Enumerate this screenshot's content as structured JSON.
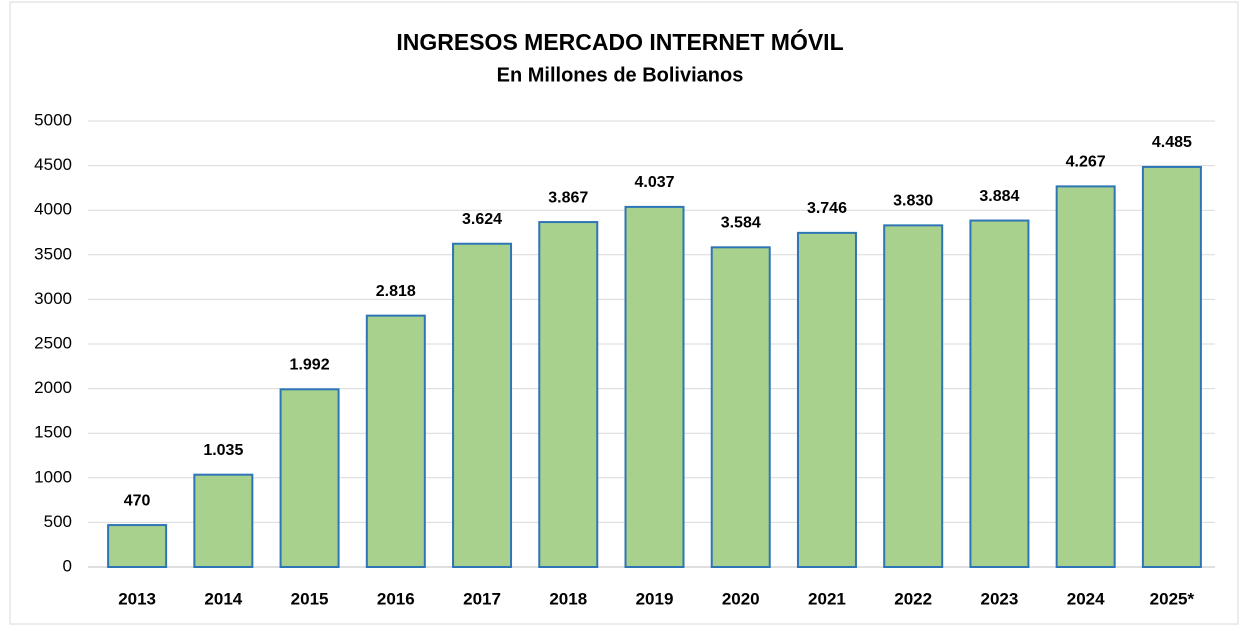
{
  "chart_data": {
    "type": "bar",
    "title": "INGRESOS MERCADO INTERNET MÓVIL",
    "subtitle": "En Millones de  Bolivianos",
    "categories": [
      "2013",
      "2014",
      "2015",
      "2016",
      "2017",
      "2018",
      "2019",
      "2020",
      "2021",
      "2022",
      "2023",
      "2024",
      "2025*"
    ],
    "values": [
      470,
      1035,
      1992,
      2818,
      3624,
      3867,
      4037,
      3584,
      3746,
      3830,
      3884,
      4267,
      4485
    ],
    "value_labels": [
      "470",
      "1.035",
      "1.992",
      "2.818",
      "3.624",
      "3.867",
      "4.037",
      "3.584",
      "3.746",
      "3.830",
      "3.884",
      "4.267",
      "4.485"
    ],
    "color": "#a9d18e",
    "edge_color": "#2e75b6",
    "ylim": [
      0,
      5000
    ],
    "yticks": [
      0,
      500,
      1000,
      1500,
      2000,
      2500,
      3000,
      3500,
      4000,
      4500,
      5000
    ],
    "grid": true
  }
}
